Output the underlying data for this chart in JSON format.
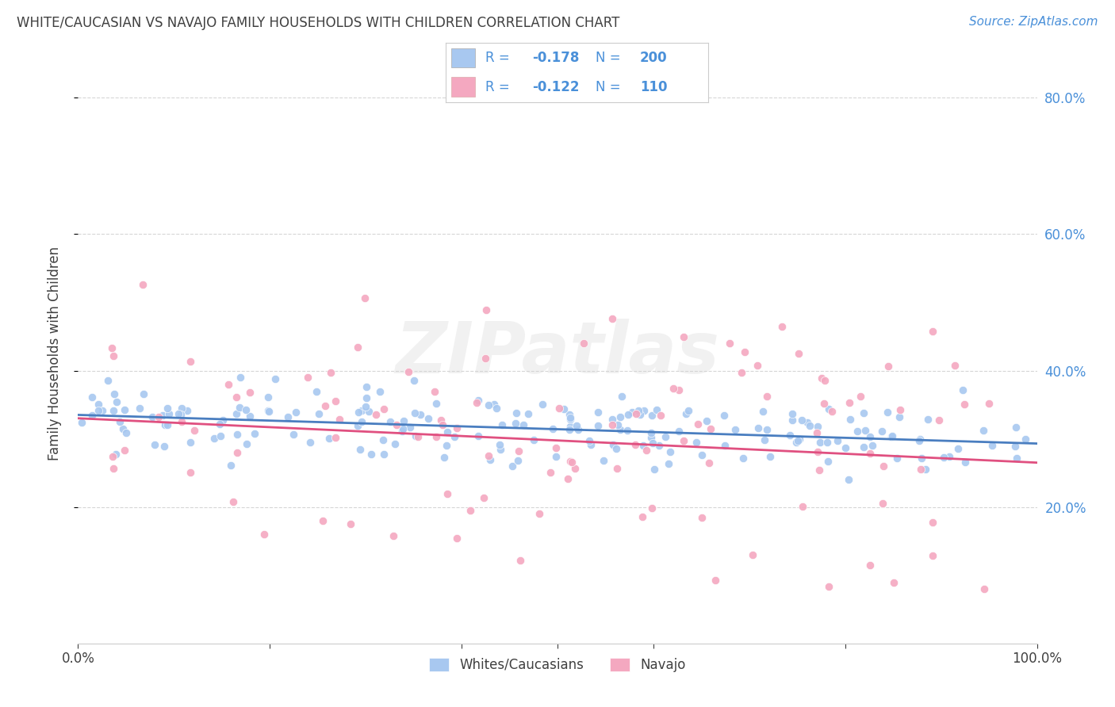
{
  "title": "WHITE/CAUCASIAN VS NAVAJO FAMILY HOUSEHOLDS WITH CHILDREN CORRELATION CHART",
  "source": "Source: ZipAtlas.com",
  "ylabel": "Family Households with Children",
  "xlim": [
    0,
    1.0
  ],
  "ylim": [
    0,
    0.85
  ],
  "y_ticks": [
    0.2,
    0.4,
    0.6,
    0.8
  ],
  "blue_color": "#A8C8F0",
  "pink_color": "#F4A8C0",
  "blue_line_color": "#4A7EC0",
  "pink_line_color": "#E05080",
  "text_color": "#3A5080",
  "legend_label_blue": "Whites/Caucasians",
  "legend_label_pink": "Navajo",
  "R_blue": -0.178,
  "N_blue": 200,
  "R_pink": -0.122,
  "N_pink": 110,
  "watermark": "ZIPatlas",
  "blue_trend_intercept": 0.335,
  "blue_trend_slope": -0.042,
  "pink_trend_intercept": 0.33,
  "pink_trend_slope": -0.065,
  "grid_color": "#CCCCCC",
  "title_color": "#404040",
  "source_color": "#4A90D9"
}
